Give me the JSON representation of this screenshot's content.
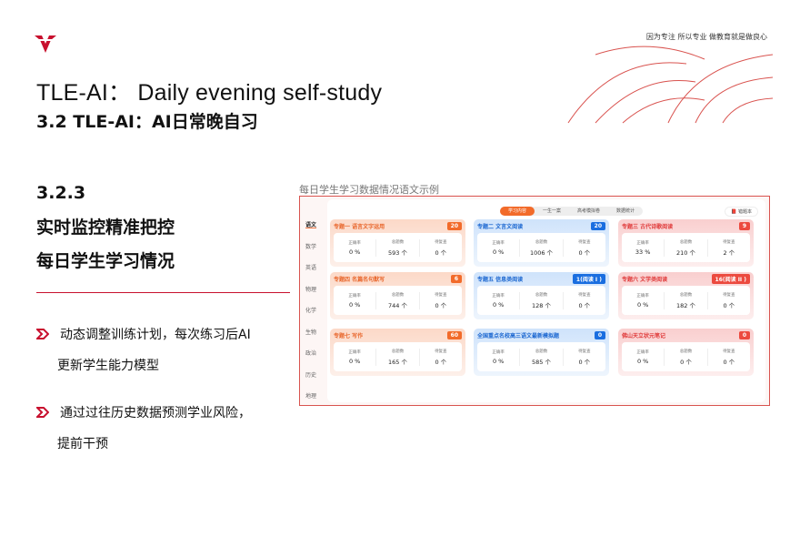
{
  "brand": {
    "motto": "因为专注 所以专业 做教育就是做良心",
    "accent": "#c8102e"
  },
  "title": "TLE-AI： Daily evening self-study",
  "subtitle": "3.2 TLE-AI：AI日常晚自习",
  "section": {
    "number": "3.2.3",
    "line1": "实时监控精准把控",
    "line2": "每日学生学习情况"
  },
  "bullets": [
    {
      "line1": "动态调整训练计划，每次练习后AI",
      "line2": "更新学生能力模型"
    },
    {
      "line1": "通过过往历史数据预测学业风险，",
      "line2": "提前干预"
    }
  ],
  "caption": "每日学生学习数据情况语文示例",
  "app": {
    "subjects": [
      "语文",
      "数学",
      "英语",
      "物理",
      "化学",
      "生物",
      "政治",
      "历史",
      "地理"
    ],
    "active_subject": "语文",
    "tabs": [
      "学习内容",
      "一生一案",
      "高考模拟卷",
      "数据统计"
    ],
    "active_tab": "学习内容",
    "error_book": "错题本",
    "stat_labels": [
      "正确率",
      "总题数",
      "待复查"
    ],
    "cards": [
      {
        "title": "专题一 语言文字运用",
        "badge": "20",
        "theme": "o",
        "values": [
          "0 %",
          "593 个",
          "0 个"
        ]
      },
      {
        "title": "专题二 文言文阅读",
        "badge": "20",
        "theme": "b",
        "values": [
          "0 %",
          "1006 个",
          "0 个"
        ]
      },
      {
        "title": "专题三 古代诗歌阅读",
        "badge": "9",
        "theme": "r",
        "values": [
          "33 %",
          "210 个",
          "2 个"
        ]
      },
      {
        "title": "专题四 名篇名句默写",
        "badge": "6",
        "theme": "o",
        "values": [
          "0 %",
          "744 个",
          "0 个"
        ]
      },
      {
        "title": "专题五 信息类阅读",
        "badge": "1(阅读 I )",
        "theme": "b",
        "values": [
          "0 %",
          "128 个",
          "0 个"
        ]
      },
      {
        "title": "专题六 文学类阅读",
        "badge": "16(阅读 II )",
        "theme": "r",
        "values": [
          "0 %",
          "182 个",
          "0 个"
        ]
      },
      {
        "title": "专题七 写作",
        "badge": "60",
        "theme": "o",
        "values": [
          "0 %",
          "165 个",
          "0 个"
        ]
      },
      {
        "title": "全国重点名校高三语文最新模拟题",
        "badge": "0",
        "theme": "b",
        "values": [
          "0 %",
          "585 个",
          "0 个"
        ]
      },
      {
        "title": "佛山天立状元笔记",
        "badge": "0",
        "theme": "r",
        "values": [
          "0 %",
          "0 个",
          "0 个"
        ]
      }
    ]
  }
}
